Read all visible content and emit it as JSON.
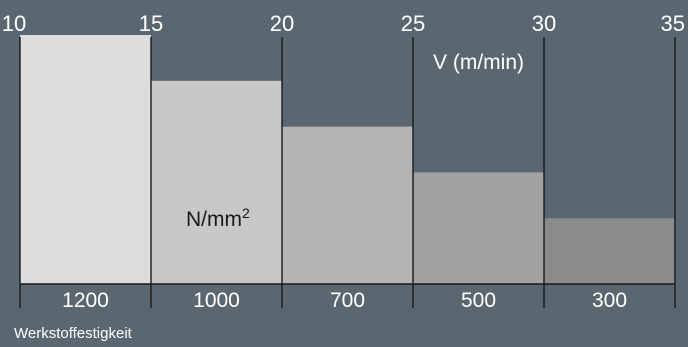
{
  "chart_data": {
    "type": "bar",
    "title": "",
    "top_axis_label": "V (m/min)",
    "top_axis_ticks": [
      "10",
      "15",
      "20",
      "25",
      "30",
      "35"
    ],
    "bar_area_label_main": "N/mm",
    "bar_area_label_sup": "2",
    "bottom_axis_label": "Werkstoffestigkeit",
    "categories": [
      "1200",
      "1000",
      "700",
      "500",
      "300"
    ],
    "series": [
      {
        "values": [
          35,
          30,
          25,
          20,
          15
        ]
      }
    ],
    "ylim": [
      10,
      35
    ],
    "bar_colors": [
      "#dcdcdc",
      "#c8c8c8",
      "#b4b4b4",
      "#a2a2a2",
      "#8b8b8b"
    ],
    "background": "#5b6770",
    "line_color": "#1a1a1a"
  }
}
